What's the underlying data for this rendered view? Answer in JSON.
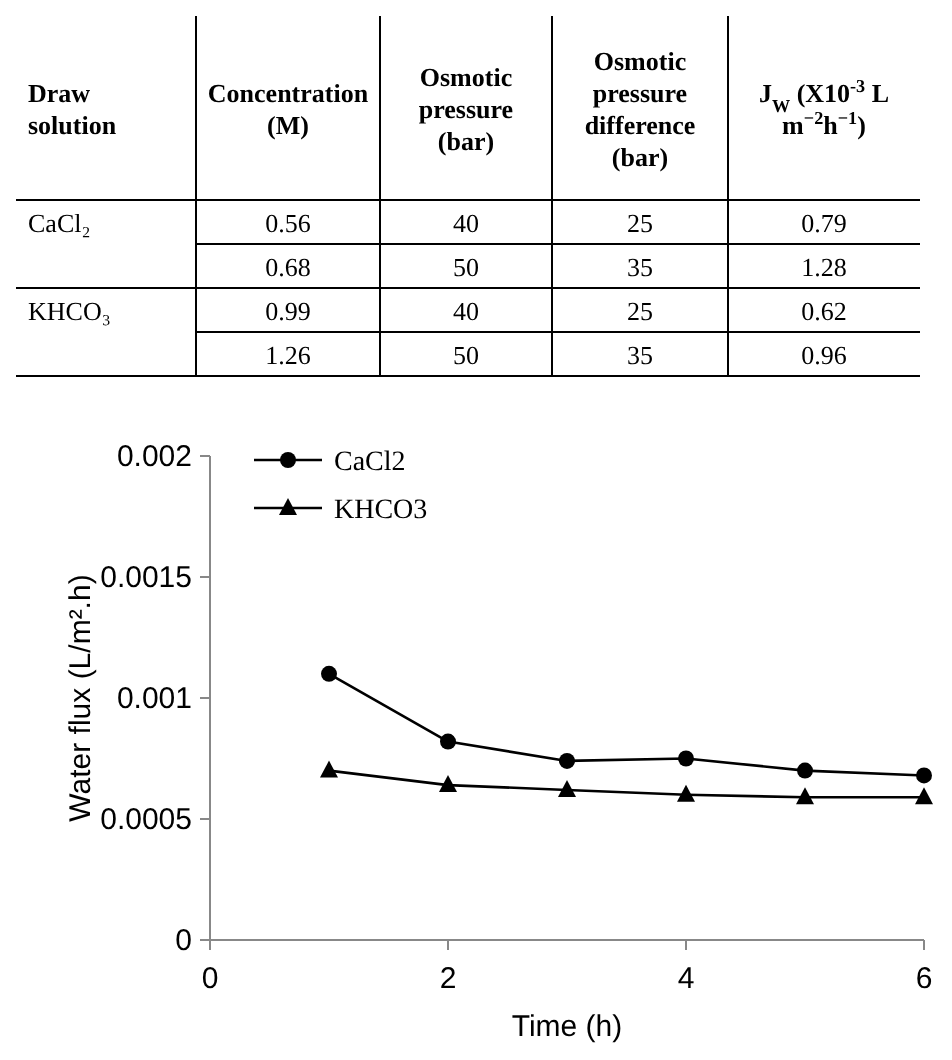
{
  "chart_data": [
    {
      "type": "other",
      "categories": [
        "Draw solution",
        "Concentration (M)",
        "Osmotic pressure (bar)",
        "Osmotic pressure difference (bar)",
        "J$_{W}$ (X10$^{-3}$ L m$^{−2}$h$^{−1}$)"
      ],
      "y_categories": [
        "CaCl₂",
        null,
        "KHCO₃",
        null
      ],
      "annotations": [
        "0.56",
        "40",
        "25",
        "0.79",
        "0.68",
        "50",
        "35",
        "1.28",
        "0.99",
        "40",
        "25",
        "0.62",
        "1.26",
        "50",
        "35",
        "0.96"
      ]
    },
    {
      "type": "line",
      "xlabel": "Time (h)",
      "ylabel": "Water flux (L/m².h)",
      "xlim": [
        0,
        6
      ],
      "xticks": [
        0,
        2,
        4,
        6
      ],
      "ylim": [
        0,
        0.002
      ],
      "yticks": [
        0,
        0.0005,
        0.001,
        0.0015,
        0.002
      ],
      "legend": "top left",
      "series": [
        {
          "name": "CaCl2",
          "color": "#000000",
          "marker": "circle",
          "x": [
            1,
            2,
            3,
            4,
            5,
            6
          ],
          "values": [
            0.0011,
            0.00082,
            0.00074,
            0.00075,
            0.0007,
            0.00068
          ]
        },
        {
          "name": "KHCO3",
          "color": "#000000",
          "marker": "triangle",
          "x": [
            1,
            2,
            3,
            4,
            5,
            6
          ],
          "values": [
            0.0007,
            0.00064,
            0.00062,
            0.0006,
            0.00059,
            0.00059
          ]
        }
      ]
    }
  ]
}
